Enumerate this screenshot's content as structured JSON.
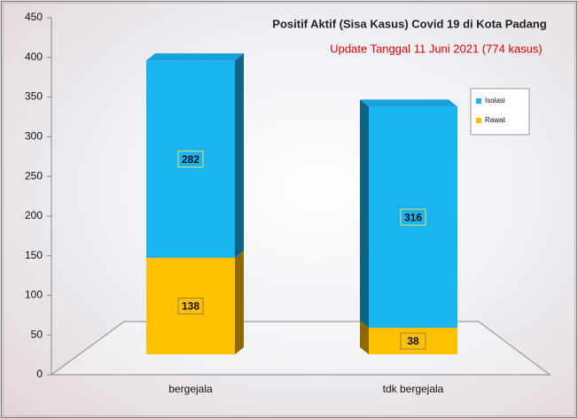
{
  "chart_data": {
    "type": "bar3d_stacked",
    "title": "Positif Aktif  (Sisa Kasus) Covid 19 di Kota Padang",
    "subtitle": "Update Tanggal 11 Juni 2021  (774 kasus)",
    "categories": [
      "bergejala",
      "tdk bergejala"
    ],
    "series": [
      {
        "name": "Rawat",
        "color": "#ffc000",
        "values": [
          138,
          38
        ]
      },
      {
        "name": "Isolasi",
        "color": "#1bb4f2",
        "values": [
          282,
          316
        ]
      }
    ],
    "ylim": [
      0,
      450
    ],
    "yticks": [
      0,
      50,
      100,
      150,
      200,
      250,
      300,
      350,
      400,
      450
    ],
    "legend": "right"
  }
}
